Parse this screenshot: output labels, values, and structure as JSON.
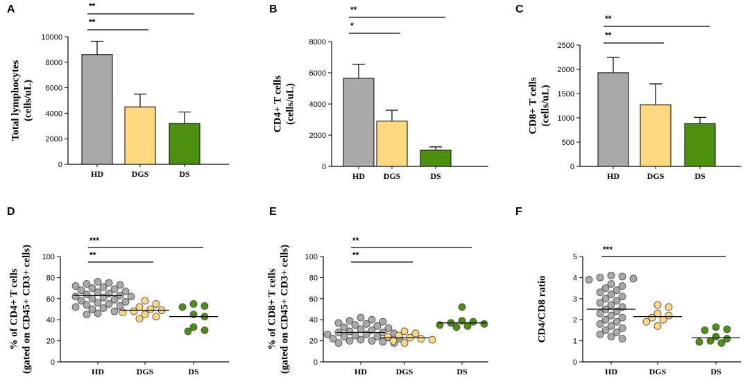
{
  "colors": {
    "HD": "#a9a9a9",
    "DGS": "#ffd980",
    "DS": "#4d8f0f"
  },
  "chart_data": [
    {
      "panel": "A",
      "type": "bar",
      "categories": [
        "HD",
        "DGS",
        "DS"
      ],
      "values": [
        8600,
        4500,
        3200
      ],
      "errors": [
        1050,
        1000,
        900
      ],
      "ylabel": [
        "Total lymphocytes",
        "(cells/uL)"
      ],
      "ylim": [
        0,
        10000
      ],
      "yticks": [
        0,
        2000,
        4000,
        6000,
        8000,
        10000
      ],
      "significance": [
        {
          "from": 0,
          "to": 2,
          "label": "**"
        },
        {
          "from": 0,
          "to": 1,
          "label": "**"
        }
      ]
    },
    {
      "panel": "B",
      "type": "bar",
      "categories": [
        "HD",
        "DGS",
        "DS"
      ],
      "values": [
        5650,
        2900,
        1050
      ],
      "errors": [
        900,
        700,
        200
      ],
      "ylabel": [
        "CD4+ T cells",
        "(cells/uL)"
      ],
      "ylim": [
        0,
        8000
      ],
      "yticks": [
        0,
        2000,
        4000,
        6000,
        8000
      ],
      "significance": [
        {
          "from": 0,
          "to": 2,
          "label": "**"
        },
        {
          "from": 0,
          "to": 1,
          "label": "*"
        }
      ]
    },
    {
      "panel": "C",
      "type": "bar",
      "categories": [
        "HD",
        "DGS",
        "DS"
      ],
      "values": [
        1930,
        1270,
        880
      ],
      "errors": [
        320,
        430,
        130
      ],
      "ylabel": [
        "CD8+ T cells",
        "(cells/uL)"
      ],
      "ylim": [
        0,
        2500
      ],
      "yticks": [
        0,
        500,
        1000,
        1500,
        2000,
        2500
      ],
      "significance": [
        {
          "from": 0,
          "to": 2,
          "label": "**"
        },
        {
          "from": 0,
          "to": 1,
          "label": "**"
        }
      ]
    },
    {
      "panel": "D",
      "type": "scatter",
      "categories": [
        "HD",
        "DGS",
        "DS"
      ],
      "points": [
        [
          76,
          75,
          74,
          73,
          72,
          71,
          70,
          69,
          68,
          67,
          66,
          65,
          64,
          63,
          62,
          62,
          61,
          60,
          59,
          58,
          57,
          56,
          55,
          54,
          53,
          52,
          51,
          50,
          48,
          46,
          45
        ],
        [
          58,
          55,
          52,
          50,
          49,
          48,
          47,
          45,
          43,
          41
        ],
        [
          55,
          53,
          52,
          45,
          43,
          33,
          30,
          29
        ]
      ],
      "means": [
        63,
        49,
        43
      ],
      "ylabel": [
        "% of CD4+ T cells",
        "(gated on CD45+ CD3+ cells)"
      ],
      "ylim": [
        0,
        100
      ],
      "yticks": [
        0,
        20,
        40,
        60,
        80,
        100
      ],
      "significance": [
        {
          "from": 0,
          "to": 2,
          "label": "***"
        },
        {
          "from": 0,
          "to": 1,
          "label": "**"
        }
      ]
    },
    {
      "panel": "E",
      "type": "scatter",
      "categories": [
        "HD",
        "DGS",
        "DS"
      ],
      "points": [
        [
          42,
          40,
          39,
          38,
          37,
          36,
          35,
          34,
          33,
          32,
          31,
          30,
          29,
          28,
          28,
          27,
          26,
          26,
          25,
          24,
          24,
          23,
          22,
          22,
          21,
          20,
          20,
          19,
          18,
          18
        ],
        [
          29,
          27,
          25,
          24,
          23,
          22,
          21,
          20,
          18
        ],
        [
          52,
          39,
          38,
          37,
          36,
          35,
          34,
          33
        ]
      ],
      "means": [
        28,
        23,
        37
      ],
      "ylabel": [
        "% of CD8+ T cells",
        "(gated on CD45+ CD3+ cells)"
      ],
      "ylim": [
        0,
        100
      ],
      "yticks": [
        0,
        20,
        40,
        60,
        80,
        100
      ],
      "significance": [
        {
          "from": 0,
          "to": 2,
          "label": "**"
        },
        {
          "from": 0,
          "to": 1,
          "label": "**"
        }
      ]
    },
    {
      "panel": "F",
      "type": "scatter",
      "categories": [
        "HD",
        "DGS",
        "DS"
      ],
      "points": [
        [
          4.1,
          4.05,
          4.0,
          3.95,
          3.9,
          3.7,
          3.6,
          3.5,
          3.4,
          3.3,
          3.2,
          3.1,
          3.0,
          2.9,
          2.8,
          2.7,
          2.6,
          2.5,
          2.4,
          2.3,
          2.2,
          2.1,
          2.0,
          1.9,
          1.8,
          1.7,
          1.6,
          1.5,
          1.4,
          1.3,
          1.2,
          1.1
        ],
        [
          2.7,
          2.6,
          2.3,
          2.2,
          2.1,
          2.0,
          1.9,
          1.7
        ],
        [
          1.65,
          1.55,
          1.5,
          1.2,
          1.1,
          1.0,
          0.95,
          0.9
        ]
      ],
      "means": [
        2.5,
        2.15,
        1.15
      ],
      "ylabel": [
        "CD4/CD8 ratio"
      ],
      "ylim": [
        0,
        5
      ],
      "yticks": [
        0,
        1,
        2,
        3,
        4,
        5
      ],
      "significance": [
        {
          "from": 0,
          "to": 2,
          "label": "***"
        }
      ]
    }
  ]
}
